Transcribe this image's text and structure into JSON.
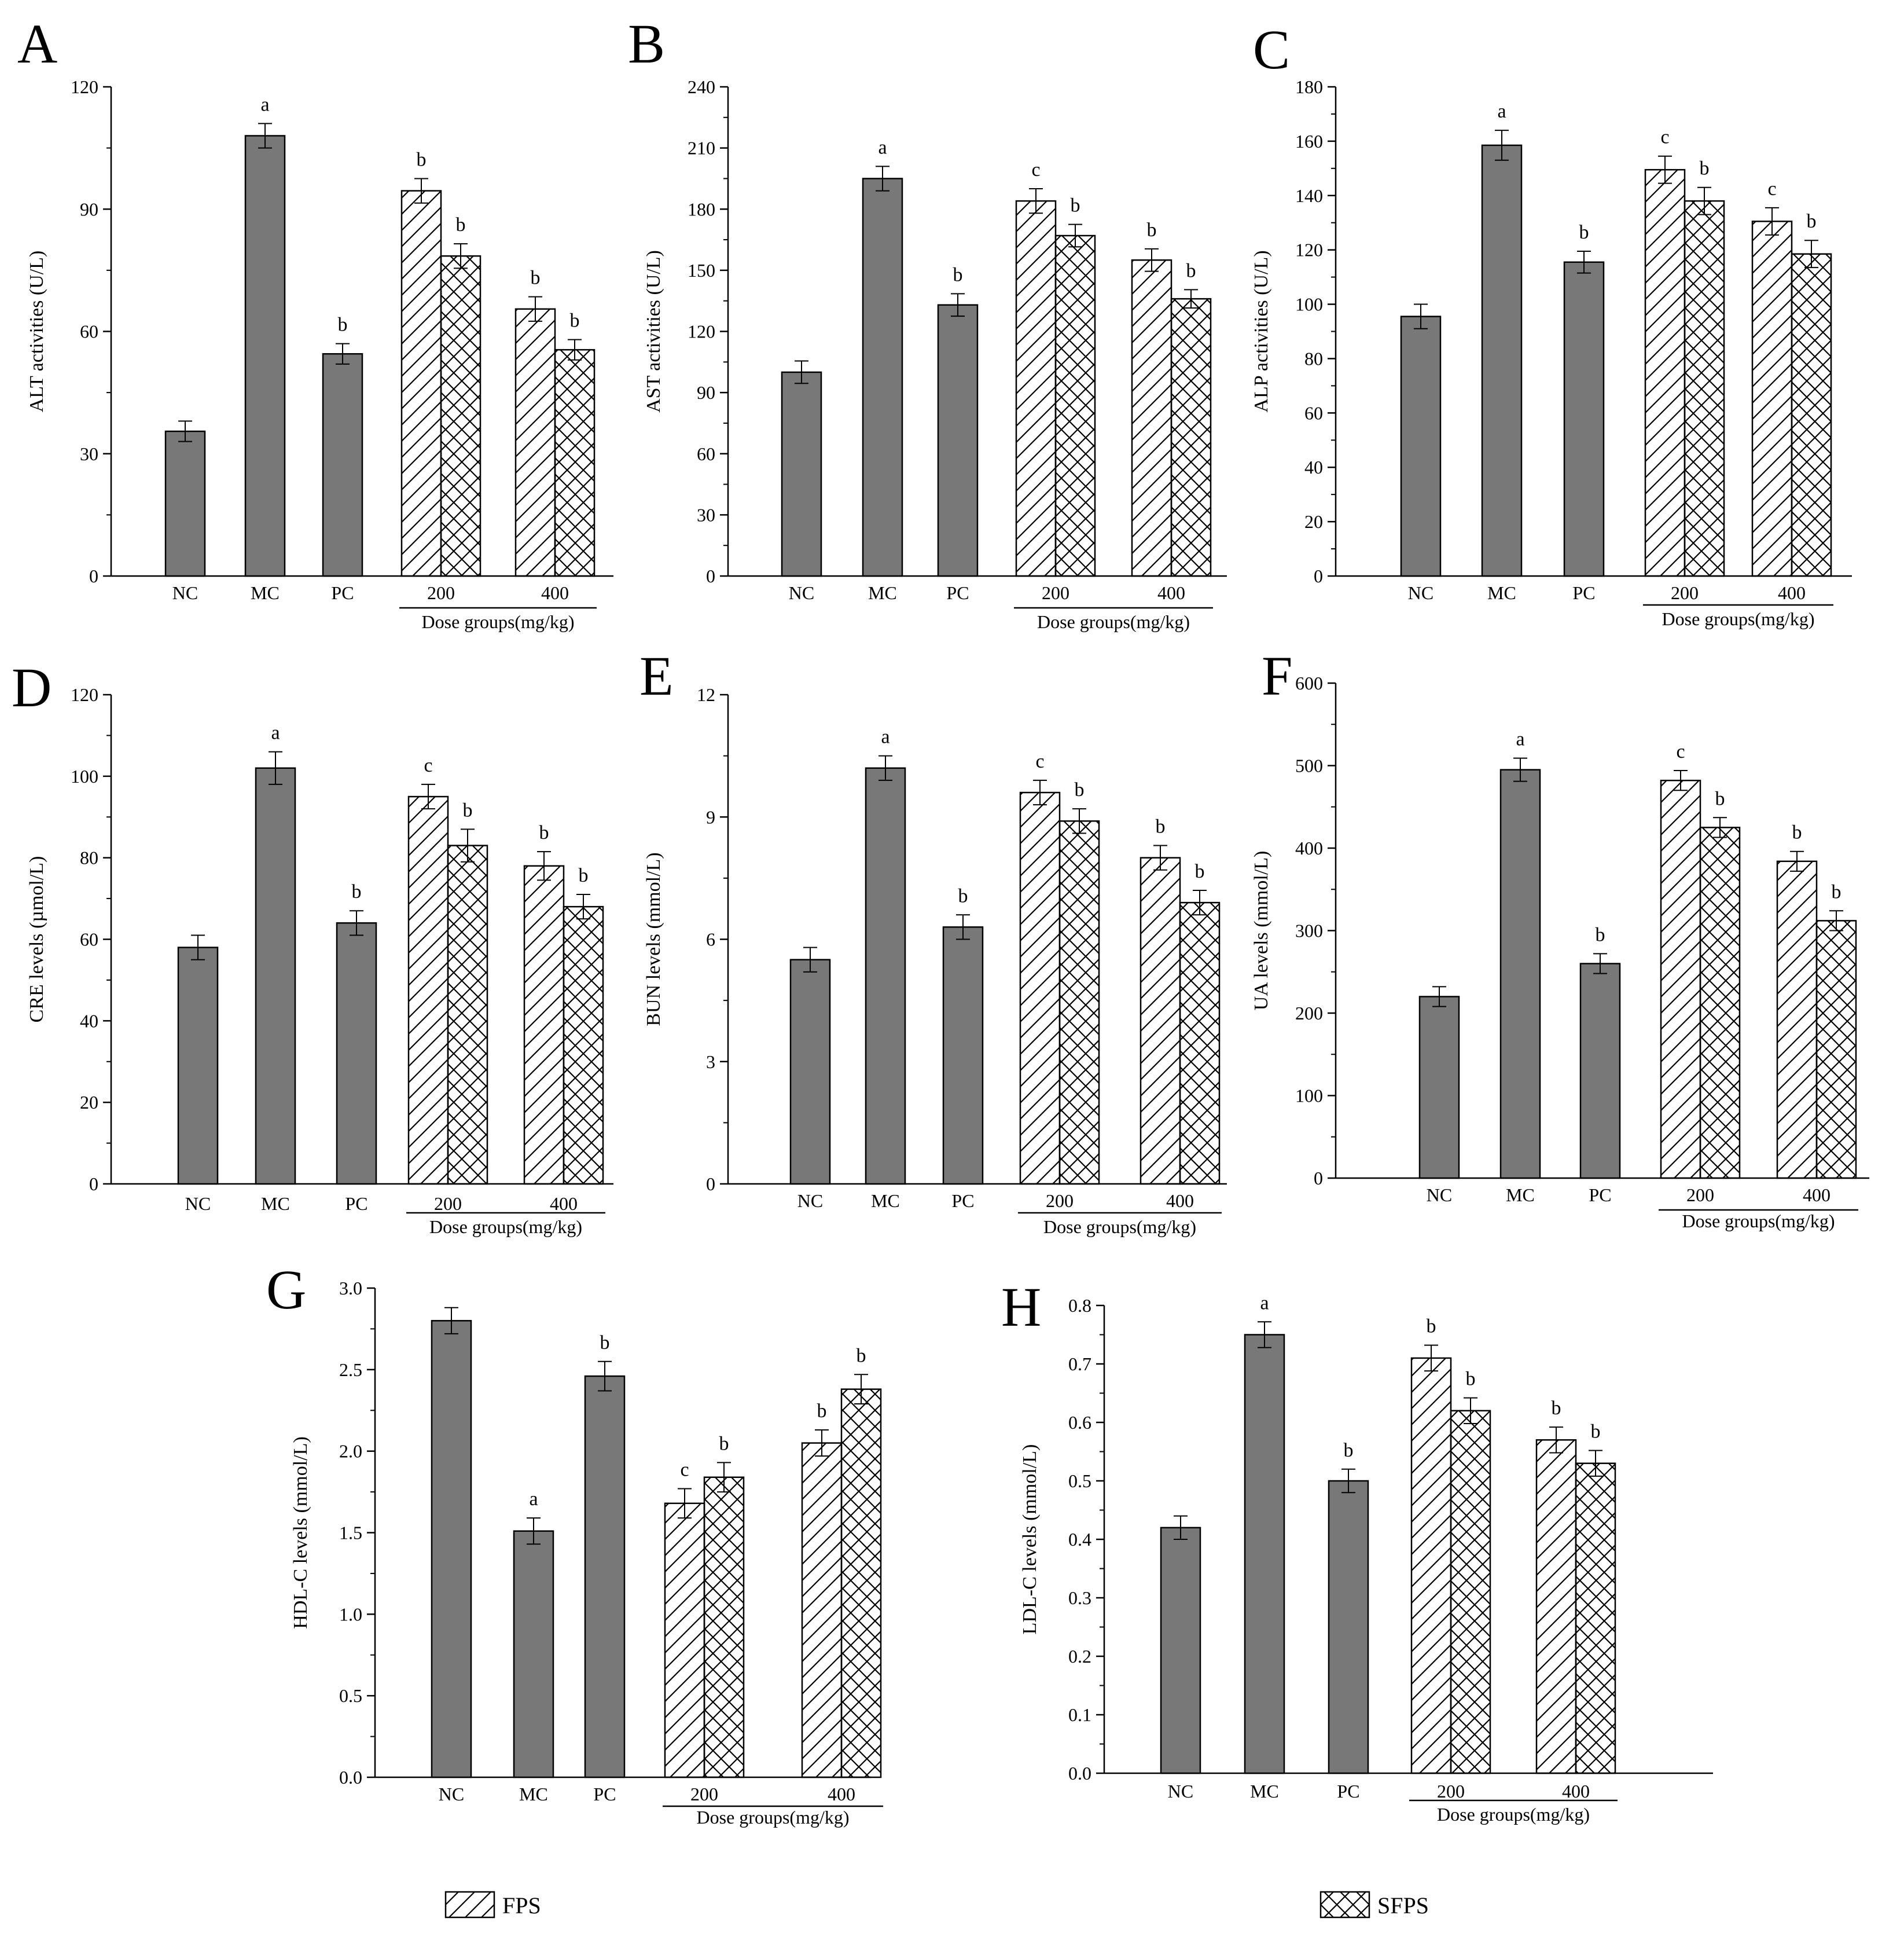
{
  "colors": {
    "solid": "#787878",
    "stroke": "#000000",
    "hatch": "#000000"
  },
  "legend": {
    "fps": "FPS",
    "sfps": "SFPS"
  },
  "chart_data": [
    {
      "panel": "A",
      "type": "bar",
      "ylabel": "ALT activities (U/L)",
      "ylim": [
        0,
        120
      ],
      "yticks": [
        0,
        30,
        60,
        90,
        120
      ],
      "ctrl": [
        {
          "label": "NC",
          "value": 35.5,
          "err": 2.5,
          "sig": ""
        },
        {
          "label": "MC",
          "value": 108,
          "err": 3,
          "sig": "a"
        },
        {
          "label": "PC",
          "value": 54.5,
          "err": 2.5,
          "sig": "b"
        }
      ],
      "dose": [
        {
          "label": "200",
          "fps": 94.5,
          "fps_err": 3,
          "fps_sig": "b",
          "sfps": 78.5,
          "sfps_err": 3,
          "sfps_sig": "b"
        },
        {
          "label": "400",
          "fps": 65.5,
          "fps_err": 3,
          "fps_sig": "b",
          "sfps": 55.5,
          "sfps_err": 2.5,
          "sfps_sig": "b"
        }
      ],
      "xlabel": "Dose groups(mg/kg)"
    },
    {
      "panel": "B",
      "type": "bar",
      "ylabel": "AST activities (U/L)",
      "ylim": [
        0,
        240
      ],
      "yticks": [
        0,
        30,
        60,
        90,
        120,
        150,
        180,
        210,
        240
      ],
      "ctrl": [
        {
          "label": "NC",
          "value": 100,
          "err": 5.5,
          "sig": ""
        },
        {
          "label": "MC",
          "value": 195,
          "err": 6,
          "sig": "a"
        },
        {
          "label": "PC",
          "value": 133,
          "err": 5.5,
          "sig": "b"
        }
      ],
      "dose": [
        {
          "label": "200",
          "fps": 184,
          "fps_err": 6,
          "fps_sig": "c",
          "sfps": 167,
          "sfps_err": 5.5,
          "sfps_sig": "b"
        },
        {
          "label": "400",
          "fps": 155,
          "fps_err": 5.5,
          "fps_sig": "b",
          "sfps": 136,
          "sfps_err": 4.5,
          "sfps_sig": "b"
        }
      ],
      "xlabel": "Dose groups(mg/kg)"
    },
    {
      "panel": "C",
      "type": "bar",
      "ylabel": "ALP activities (U/L)",
      "ylim": [
        0,
        180
      ],
      "yticks": [
        0,
        20,
        40,
        60,
        80,
        100,
        120,
        140,
        160,
        180
      ],
      "ctrl": [
        {
          "label": "NC",
          "value": 95.5,
          "err": 4.5,
          "sig": ""
        },
        {
          "label": "MC",
          "value": 158.5,
          "err": 5.5,
          "sig": "a"
        },
        {
          "label": "PC",
          "value": 115.5,
          "err": 4,
          "sig": "b"
        }
      ],
      "dose": [
        {
          "label": "200",
          "fps": 149.5,
          "fps_err": 5,
          "fps_sig": "c",
          "sfps": 138,
          "sfps_err": 5,
          "sfps_sig": "b"
        },
        {
          "label": "400",
          "fps": 130.5,
          "fps_err": 5,
          "fps_sig": "c",
          "sfps": 118.5,
          "sfps_err": 5,
          "sfps_sig": "b"
        }
      ],
      "xlabel": "Dose groups(mg/kg)"
    },
    {
      "panel": "D",
      "type": "bar",
      "ylabel": "CRE levels (µmol/L)",
      "ylim": [
        0,
        120
      ],
      "yticks": [
        0,
        20,
        40,
        60,
        80,
        100,
        120
      ],
      "ctrl": [
        {
          "label": "NC",
          "value": 58,
          "err": 3,
          "sig": ""
        },
        {
          "label": "MC",
          "value": 102,
          "err": 4,
          "sig": "a"
        },
        {
          "label": "PC",
          "value": 64,
          "err": 3,
          "sig": "b"
        }
      ],
      "dose": [
        {
          "label": "200",
          "fps": 95,
          "fps_err": 3,
          "fps_sig": "c",
          "sfps": 83,
          "sfps_err": 4,
          "sfps_sig": "b"
        },
        {
          "label": "400",
          "fps": 78,
          "fps_err": 3.5,
          "fps_sig": "b",
          "sfps": 68,
          "sfps_err": 3,
          "sfps_sig": "b"
        }
      ],
      "xlabel": "Dose groups(mg/kg)"
    },
    {
      "panel": "E",
      "type": "bar",
      "ylabel": "BUN levels (mmol/L)",
      "ylim": [
        0,
        12
      ],
      "yticks": [
        0,
        3,
        6,
        9,
        12
      ],
      "ctrl": [
        {
          "label": "NC",
          "value": 5.5,
          "err": 0.3,
          "sig": ""
        },
        {
          "label": "MC",
          "value": 10.2,
          "err": 0.3,
          "sig": "a"
        },
        {
          "label": "PC",
          "value": 6.3,
          "err": 0.3,
          "sig": "b"
        }
      ],
      "dose": [
        {
          "label": "200",
          "fps": 9.6,
          "fps_err": 0.3,
          "fps_sig": "c",
          "sfps": 8.9,
          "sfps_err": 0.3,
          "sfps_sig": "b"
        },
        {
          "label": "400",
          "fps": 8.0,
          "fps_err": 0.3,
          "fps_sig": "b",
          "sfps": 6.9,
          "sfps_err": 0.3,
          "sfps_sig": "b"
        }
      ],
      "xlabel": "Dose groups(mg/kg)"
    },
    {
      "panel": "F",
      "type": "bar",
      "ylabel": "UA levels (mmol/L)",
      "ylim": [
        0,
        600
      ],
      "yticks": [
        0,
        100,
        200,
        300,
        400,
        500,
        600
      ],
      "ctrl": [
        {
          "label": "NC",
          "value": 220,
          "err": 12,
          "sig": ""
        },
        {
          "label": "MC",
          "value": 495,
          "err": 14,
          "sig": "a"
        },
        {
          "label": "PC",
          "value": 260,
          "err": 12,
          "sig": "b"
        }
      ],
      "dose": [
        {
          "label": "200",
          "fps": 482,
          "fps_err": 12,
          "fps_sig": "c",
          "sfps": 425,
          "sfps_err": 12,
          "sfps_sig": "b"
        },
        {
          "label": "400",
          "fps": 384,
          "fps_err": 12,
          "fps_sig": "b",
          "sfps": 312,
          "sfps_err": 12,
          "sfps_sig": "b"
        }
      ],
      "xlabel": "Dose groups(mg/kg)"
    },
    {
      "panel": "G",
      "type": "bar",
      "ylabel": "HDL-C levels (mmol/L)",
      "ylim": [
        0,
        3.0
      ],
      "yticks": [
        "0.0",
        "0.5",
        "1.0",
        "1.5",
        "2.0",
        "2.5",
        "3.0"
      ],
      "ctrl": [
        {
          "label": "NC",
          "value": 2.8,
          "err": 0.08,
          "sig": ""
        },
        {
          "label": "MC",
          "value": 1.51,
          "err": 0.08,
          "sig": "a"
        },
        {
          "label": "PC",
          "value": 2.46,
          "err": 0.09,
          "sig": "b"
        }
      ],
      "dose": [
        {
          "label": "200",
          "fps": 1.68,
          "fps_err": 0.09,
          "fps_sig": "c",
          "sfps": 1.84,
          "sfps_err": 0.09,
          "sfps_sig": "b"
        },
        {
          "label": "400",
          "fps": 2.05,
          "fps_err": 0.08,
          "fps_sig": "b",
          "sfps": 2.38,
          "sfps_err": 0.09,
          "sfps_sig": "b"
        }
      ],
      "xlabel": "Dose groups(mg/kg)"
    },
    {
      "panel": "H",
      "type": "bar",
      "ylabel": "LDL-C levels (mmol/L)",
      "ylim": [
        0,
        0.8
      ],
      "yticks": [
        "0.0",
        "0.1",
        "0.2",
        "0.3",
        "0.4",
        "0.5",
        "0.6",
        "0.7",
        "0.8"
      ],
      "ctrl": [
        {
          "label": "NC",
          "value": 0.42,
          "err": 0.02,
          "sig": ""
        },
        {
          "label": "MC",
          "value": 0.75,
          "err": 0.022,
          "sig": "a"
        },
        {
          "label": "PC",
          "value": 0.5,
          "err": 0.02,
          "sig": "b"
        }
      ],
      "dose": [
        {
          "label": "200",
          "fps": 0.71,
          "fps_err": 0.022,
          "fps_sig": "b",
          "sfps": 0.62,
          "sfps_err": 0.022,
          "sfps_sig": "b"
        },
        {
          "label": "400",
          "fps": 0.57,
          "fps_err": 0.022,
          "fps_sig": "b",
          "sfps": 0.53,
          "sfps_err": 0.022,
          "sfps_sig": "b"
        }
      ],
      "xlabel": "Dose groups(mg/kg)"
    }
  ]
}
